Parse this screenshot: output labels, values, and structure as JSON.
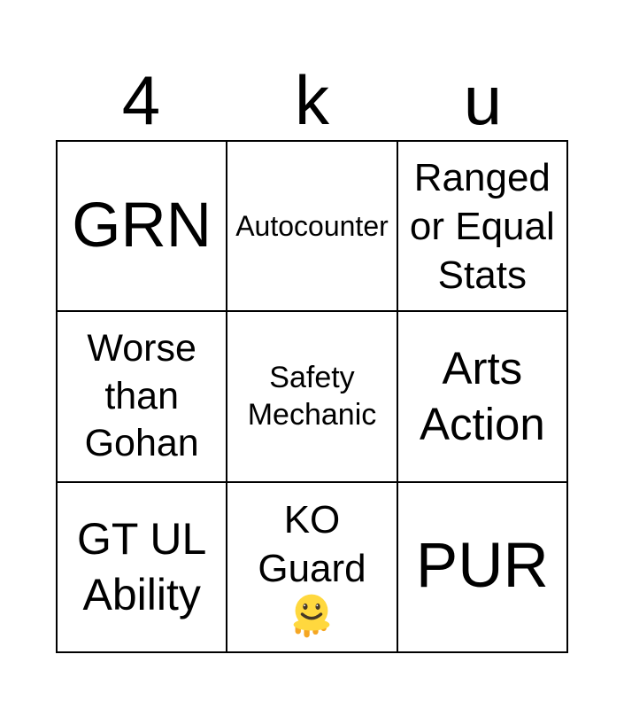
{
  "page": {
    "background_color": "#ffffff",
    "grid_line_color": "#000000",
    "text_color": "#000000"
  },
  "title": "4ku",
  "grid": {
    "rows": 3,
    "cols": 3,
    "cells": [
      {
        "text": "GRN",
        "lines": [
          "GRN"
        ]
      },
      {
        "text": "Autocounter",
        "lines": [
          "Autocounter"
        ]
      },
      {
        "text": "Ranged or Equal Stats",
        "lines": [
          "Ranged",
          "or Equal",
          "Stats"
        ]
      },
      {
        "text": "Worse than Gohan",
        "lines": [
          "Worse",
          "than",
          "Gohan"
        ]
      },
      {
        "text": "Safety Mechanic",
        "lines": [
          "Safety",
          "Mechanic"
        ]
      },
      {
        "text": "Arts Action",
        "lines": [
          "Arts",
          "Action"
        ]
      },
      {
        "text": "GT UL Ability",
        "lines": [
          "GT UL",
          "Ability"
        ]
      },
      {
        "text": "KO Guard 🫠",
        "lines": [
          "KO",
          "Guard",
          "🫠"
        ]
      },
      {
        "text": "PUR",
        "lines": [
          "PUR"
        ]
      }
    ],
    "emoji": {
      "char": "🫠",
      "name": "melting-face",
      "face_color": "#FFD83E",
      "drip_color": "#F5A623",
      "feature_color": "#453826"
    }
  }
}
